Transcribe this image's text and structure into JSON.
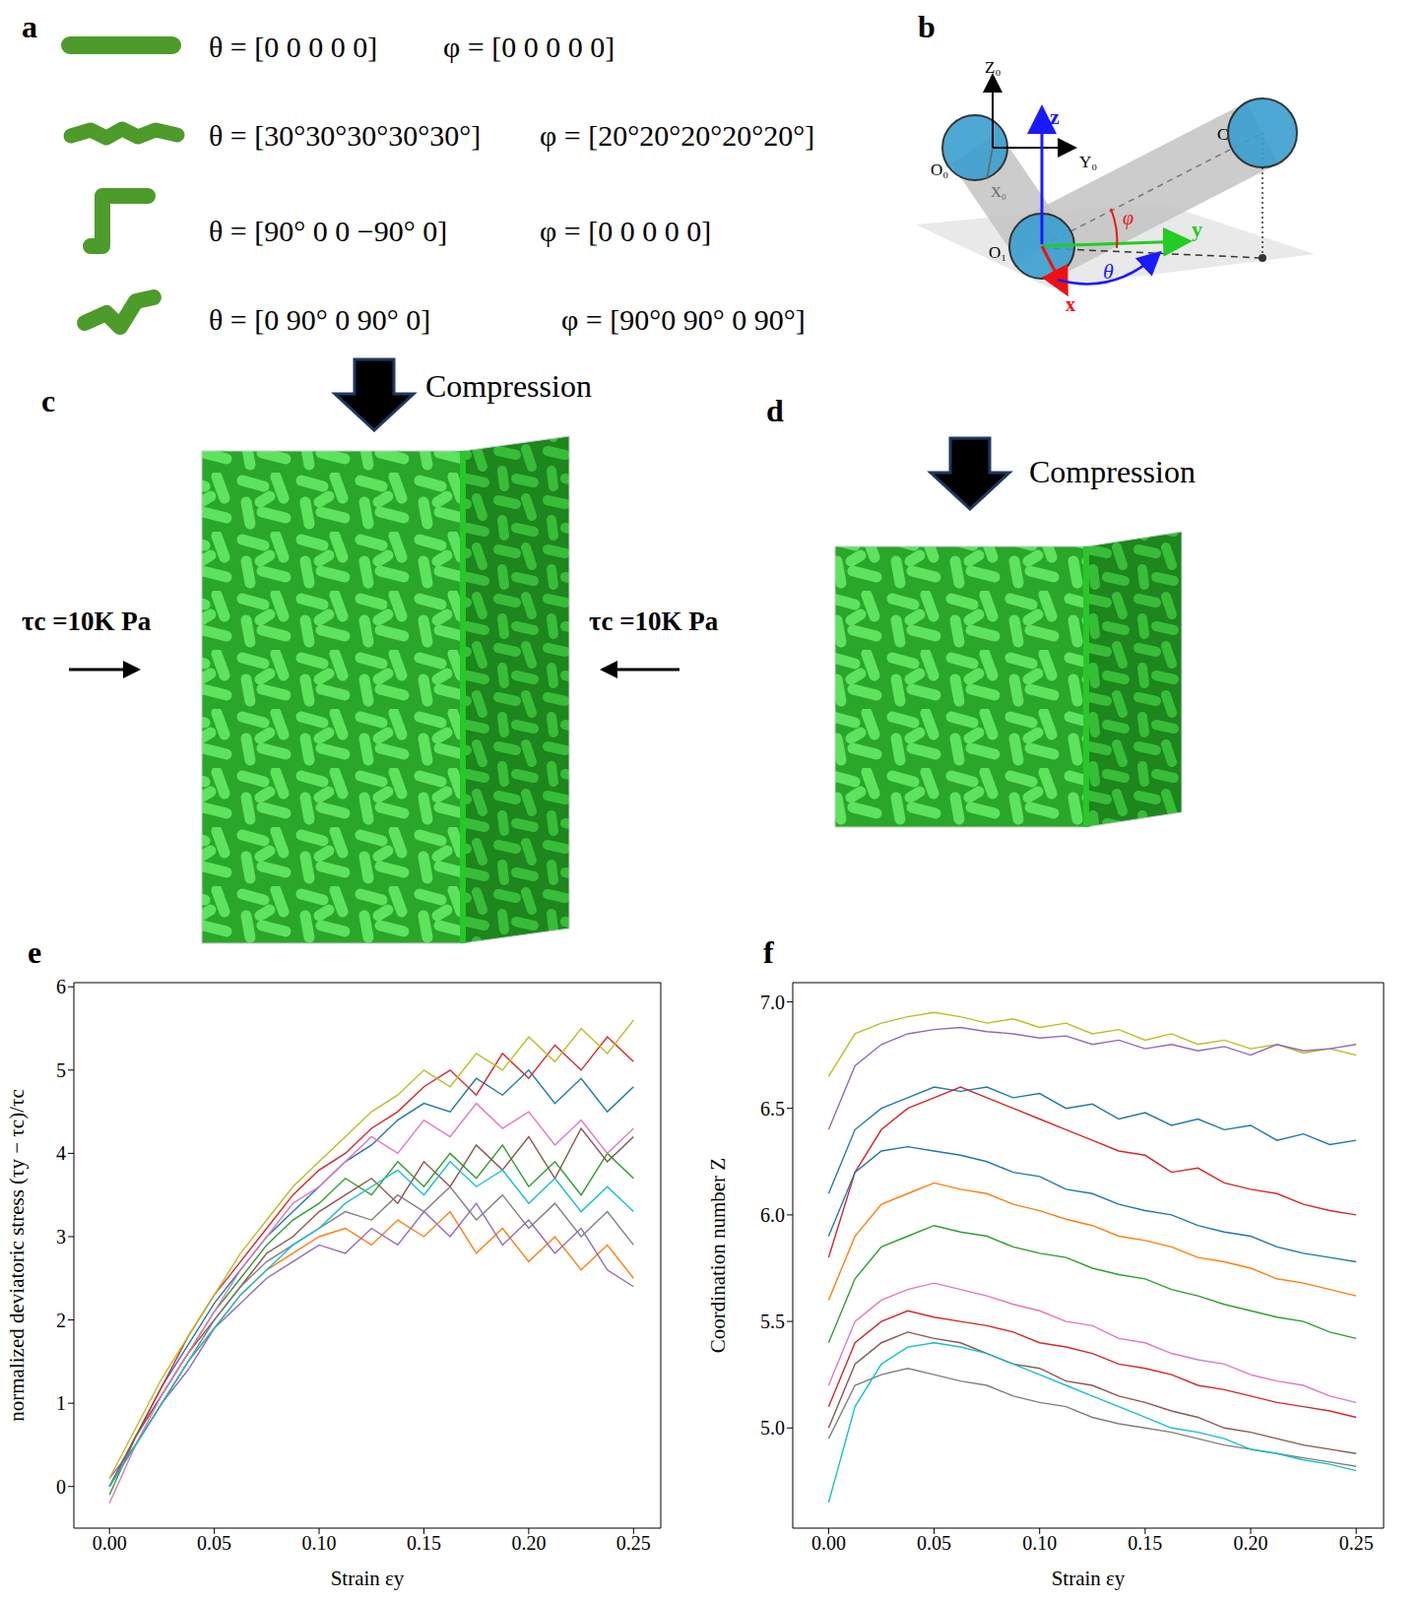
{
  "panels": {
    "a": {
      "letter": "a",
      "rows": [
        {
          "theta": "θ = [0 0 0 0 0]",
          "phi": "φ = [0 0 0 0 0]"
        },
        {
          "theta": "θ = [30°30°30°30°30°]",
          "phi": "φ = [20°20°20°20°20°]"
        },
        {
          "theta": "θ = [90° 0 0 −90° 0]",
          "phi": "φ = [0 0 0 0 0]"
        },
        {
          "theta": "θ = [0 90° 0 90° 0]",
          "phi": "φ = [90°0 90° 0 90°]"
        }
      ]
    },
    "b": {
      "letter": "b",
      "labels": {
        "Z0": "Z₀",
        "Y0": "Y₀",
        "X0": "X₀",
        "O0": "O₀",
        "O1": "O₁",
        "C": "C",
        "z": "z",
        "y": "y",
        "x": "x",
        "theta": "θ",
        "phi": "φ"
      }
    },
    "c": {
      "letter": "c",
      "load": "Compression",
      "confining": "τc =10K Pa"
    },
    "d": {
      "letter": "d",
      "load": "Compression"
    }
  },
  "chart_data": [
    {
      "letter": "e",
      "type": "line",
      "x_label": "Strain εy",
      "y_label": "normalized deviatoric stress (τy − τc)/τc",
      "x": [
        0,
        0.0125,
        0.025,
        0.0375,
        0.05,
        0.0625,
        0.075,
        0.0875,
        0.1,
        0.1125,
        0.125,
        0.1375,
        0.15,
        0.1625,
        0.175,
        0.1875,
        0.2,
        0.2125,
        0.225,
        0.2375,
        0.25
      ],
      "xlim": [
        -0.017,
        0.263
      ],
      "xticks": [
        {
          "value": 0,
          "label": "0.00"
        },
        {
          "value": 0.05,
          "label": "0.05"
        },
        {
          "value": 0.1,
          "label": "0.10"
        },
        {
          "value": 0.15,
          "label": "0.15"
        },
        {
          "value": 0.2,
          "label": "0.20"
        },
        {
          "value": 0.25,
          "label": "0.25"
        }
      ],
      "ylim": [
        -0.5,
        6.05
      ],
      "yticks": [
        0,
        1,
        2,
        3,
        4,
        5,
        6
      ],
      "grid": false,
      "series": [
        {
          "color": "#1f77b4",
          "values": [
            0,
            0.6,
            1.2,
            1.7,
            2.2,
            2.6,
            3.0,
            3.3,
            3.6,
            3.9,
            4.1,
            4.4,
            4.6,
            4.5,
            4.9,
            4.7,
            5.0,
            4.6,
            4.9,
            4.5,
            4.8
          ]
        },
        {
          "color": "#ff7f0e",
          "values": [
            0,
            0.5,
            1.0,
            1.5,
            1.9,
            2.3,
            2.6,
            2.8,
            3.0,
            3.1,
            2.9,
            3.2,
            3.0,
            3.3,
            2.8,
            3.1,
            2.7,
            3.0,
            2.6,
            2.9,
            2.5
          ]
        },
        {
          "color": "#2ca02c",
          "values": [
            -0.1,
            0.6,
            1.1,
            1.6,
            2.1,
            2.5,
            2.9,
            3.2,
            3.4,
            3.7,
            3.5,
            3.9,
            3.6,
            4.0,
            3.7,
            4.1,
            3.6,
            3.9,
            3.5,
            4.0,
            3.7
          ]
        },
        {
          "color": "#d62728",
          "values": [
            0,
            0.6,
            1.2,
            1.8,
            2.3,
            2.7,
            3.1,
            3.5,
            3.8,
            4.0,
            4.3,
            4.5,
            4.8,
            5.0,
            4.7,
            5.2,
            4.9,
            5.3,
            5.0,
            5.4,
            5.1
          ]
        },
        {
          "color": "#9467bd",
          "values": [
            0.1,
            0.5,
            1.0,
            1.4,
            1.9,
            2.2,
            2.5,
            2.7,
            2.9,
            2.8,
            3.1,
            2.9,
            3.3,
            3.0,
            3.4,
            2.9,
            3.2,
            2.8,
            3.1,
            2.6,
            2.4
          ]
        },
        {
          "color": "#8c564b",
          "values": [
            0,
            0.6,
            1.1,
            1.6,
            2.0,
            2.4,
            2.8,
            3.0,
            3.3,
            3.5,
            3.7,
            3.4,
            3.9,
            3.6,
            4.1,
            3.8,
            4.2,
            3.7,
            4.3,
            3.9,
            4.2
          ]
        },
        {
          "color": "#e377c2",
          "values": [
            -0.2,
            0.5,
            1.1,
            1.6,
            2.1,
            2.6,
            3.0,
            3.4,
            3.6,
            3.9,
            4.2,
            4.0,
            4.4,
            4.2,
            4.6,
            4.3,
            4.5,
            4.1,
            4.4,
            4.0,
            4.3
          ]
        },
        {
          "color": "#7f7f7f",
          "values": [
            0,
            0.5,
            1.0,
            1.5,
            2.0,
            2.4,
            2.7,
            2.9,
            3.1,
            3.3,
            3.2,
            3.5,
            3.3,
            3.6,
            3.2,
            3.5,
            3.1,
            3.4,
            3.0,
            3.3,
            2.9
          ]
        },
        {
          "color": "#bcbd22",
          "values": [
            0.1,
            0.7,
            1.3,
            1.8,
            2.3,
            2.8,
            3.2,
            3.6,
            3.9,
            4.2,
            4.5,
            4.7,
            5.0,
            4.8,
            5.2,
            5.0,
            5.4,
            5.1,
            5.5,
            5.2,
            5.6
          ]
        },
        {
          "color": "#17becf",
          "values": [
            0,
            0.5,
            1.0,
            1.5,
            1.9,
            2.3,
            2.6,
            2.9,
            3.1,
            3.4,
            3.6,
            3.8,
            3.5,
            3.9,
            3.6,
            3.8,
            3.4,
            3.7,
            3.3,
            3.6,
            3.3
          ]
        }
      ]
    },
    {
      "letter": "f",
      "type": "line",
      "x_label": "Strain εy",
      "y_label": "Coordination number Z",
      "x": [
        0,
        0.0125,
        0.025,
        0.0375,
        0.05,
        0.0625,
        0.075,
        0.0875,
        0.1,
        0.1125,
        0.125,
        0.1375,
        0.15,
        0.1625,
        0.175,
        0.1875,
        0.2,
        0.2125,
        0.225,
        0.2375,
        0.25
      ],
      "xlim": [
        -0.017,
        0.263
      ],
      "xticks": [
        {
          "value": 0,
          "label": "0.00"
        },
        {
          "value": 0.05,
          "label": "0.05"
        },
        {
          "value": 0.1,
          "label": "0.10"
        },
        {
          "value": 0.15,
          "label": "0.15"
        },
        {
          "value": 0.2,
          "label": "0.20"
        },
        {
          "value": 0.25,
          "label": "0.25"
        }
      ],
      "ylim": [
        4.53,
        7.09
      ],
      "yticks": [
        {
          "value": 5,
          "label": "5.0"
        },
        {
          "value": 5.5,
          "label": "5.5"
        },
        {
          "value": 6,
          "label": "6.0"
        },
        {
          "value": 6.5,
          "label": "6.5"
        },
        {
          "value": 7,
          "label": "7.0"
        }
      ],
      "grid": false,
      "series": [
        {
          "color": "#bcbd22",
          "values": [
            6.65,
            6.85,
            6.9,
            6.93,
            6.95,
            6.93,
            6.9,
            6.92,
            6.88,
            6.9,
            6.85,
            6.87,
            6.82,
            6.85,
            6.8,
            6.82,
            6.78,
            6.8,
            6.76,
            6.78,
            6.75
          ]
        },
        {
          "color": "#9467bd",
          "values": [
            6.4,
            6.7,
            6.8,
            6.85,
            6.87,
            6.88,
            6.86,
            6.85,
            6.83,
            6.84,
            6.8,
            6.82,
            6.78,
            6.8,
            6.77,
            6.79,
            6.75,
            6.8,
            6.77,
            6.78,
            6.8
          ]
        },
        {
          "color": "#1f77b4",
          "values": [
            6.1,
            6.4,
            6.5,
            6.55,
            6.6,
            6.58,
            6.6,
            6.55,
            6.57,
            6.5,
            6.52,
            6.45,
            6.48,
            6.42,
            6.45,
            6.4,
            6.42,
            6.35,
            6.38,
            6.33,
            6.35
          ]
        },
        {
          "color": "#d62728",
          "values": [
            5.8,
            6.2,
            6.4,
            6.5,
            6.55,
            6.6,
            6.55,
            6.5,
            6.45,
            6.4,
            6.35,
            6.3,
            6.28,
            6.2,
            6.22,
            6.15,
            6.12,
            6.1,
            6.05,
            6.02,
            6.0
          ]
        },
        {
          "color": "#ff7f0e",
          "values": [
            5.6,
            5.9,
            6.05,
            6.1,
            6.15,
            6.12,
            6.1,
            6.05,
            6.02,
            5.98,
            5.95,
            5.9,
            5.88,
            5.85,
            5.8,
            5.78,
            5.75,
            5.7,
            5.68,
            5.65,
            5.62
          ]
        },
        {
          "color": "#2ca02c",
          "values": [
            5.4,
            5.7,
            5.85,
            5.9,
            5.95,
            5.92,
            5.9,
            5.85,
            5.82,
            5.8,
            5.75,
            5.72,
            5.7,
            5.65,
            5.62,
            5.58,
            5.55,
            5.52,
            5.5,
            5.45,
            5.42
          ]
        },
        {
          "color": "#e377c2",
          "values": [
            5.2,
            5.5,
            5.6,
            5.65,
            5.68,
            5.65,
            5.62,
            5.58,
            5.55,
            5.5,
            5.48,
            5.42,
            5.4,
            5.35,
            5.32,
            5.3,
            5.25,
            5.22,
            5.2,
            5.15,
            5.12
          ]
        },
        {
          "color": "#7f7f7f",
          "values": [
            4.95,
            5.2,
            5.25,
            5.28,
            5.25,
            5.22,
            5.2,
            5.15,
            5.12,
            5.1,
            5.05,
            5.02,
            5.0,
            4.98,
            4.95,
            4.92,
            4.9,
            4.88,
            4.86,
            4.84,
            4.82
          ]
        },
        {
          "color": "#8c564b",
          "values": [
            5.0,
            5.3,
            5.4,
            5.45,
            5.42,
            5.4,
            5.35,
            5.3,
            5.28,
            5.22,
            5.2,
            5.15,
            5.12,
            5.08,
            5.05,
            5.0,
            4.98,
            4.95,
            4.92,
            4.9,
            4.88
          ]
        },
        {
          "color": "#17becf",
          "values": [
            4.65,
            5.1,
            5.3,
            5.38,
            5.4,
            5.38,
            5.35,
            5.3,
            5.25,
            5.2,
            5.15,
            5.1,
            5.05,
            5.0,
            4.98,
            4.95,
            4.9,
            4.88,
            4.85,
            4.83,
            4.8
          ]
        },
        {
          "color": "#1f77b4",
          "values": [
            5.9,
            6.2,
            6.3,
            6.32,
            6.3,
            6.28,
            6.25,
            6.2,
            6.18,
            6.12,
            6.1,
            6.05,
            6.02,
            6.0,
            5.95,
            5.92,
            5.9,
            5.85,
            5.82,
            5.8,
            5.78
          ]
        },
        {
          "color": "#d62728",
          "values": [
            5.1,
            5.4,
            5.5,
            5.55,
            5.52,
            5.5,
            5.48,
            5.45,
            5.4,
            5.38,
            5.35,
            5.3,
            5.28,
            5.25,
            5.2,
            5.18,
            5.15,
            5.12,
            5.1,
            5.08,
            5.05
          ]
        }
      ]
    }
  ]
}
